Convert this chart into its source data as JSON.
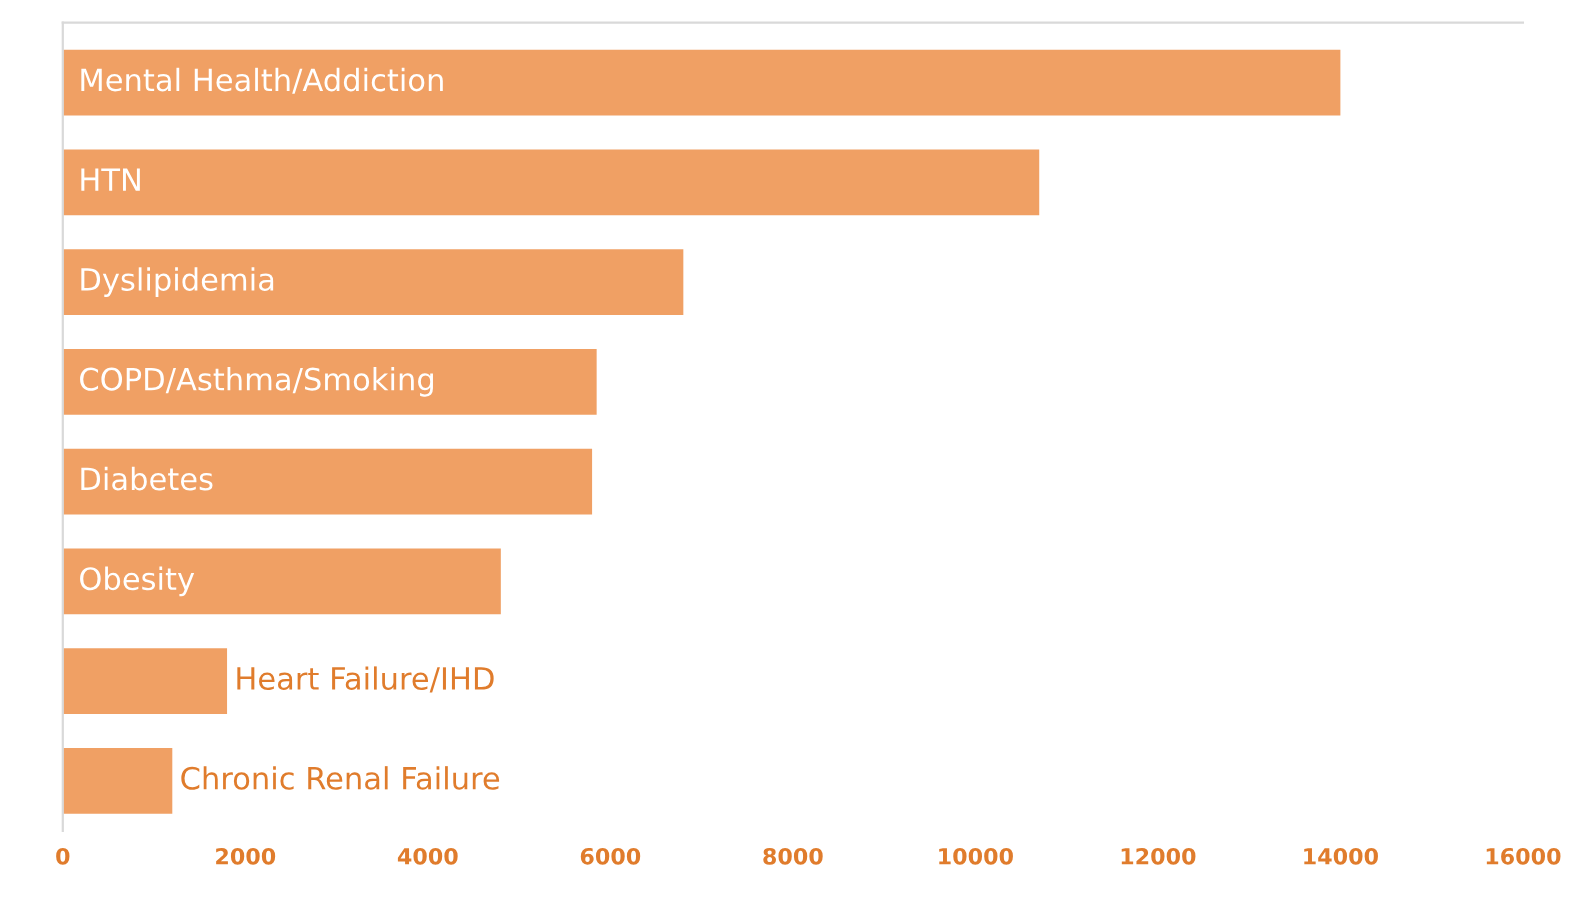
{
  "chart_data": {
    "type": "bar",
    "orientation": "horizontal",
    "categories": [
      "Mental Health/Addiction",
      "HTN",
      "Dyslipidemia",
      "COPD/Asthma/Smoking",
      "Diabetes",
      "Obesity",
      "Heart Failure/IHD",
      "Chronic Renal Failure"
    ],
    "values": [
      14000,
      10700,
      6800,
      5850,
      5800,
      4800,
      1800,
      1200
    ],
    "color": "#f0a064",
    "xlim": [
      0,
      16000
    ],
    "xticks": [
      0,
      2000,
      4000,
      6000,
      8000,
      10000,
      12000,
      14000,
      16000
    ],
    "grid": false,
    "legend": false
  }
}
